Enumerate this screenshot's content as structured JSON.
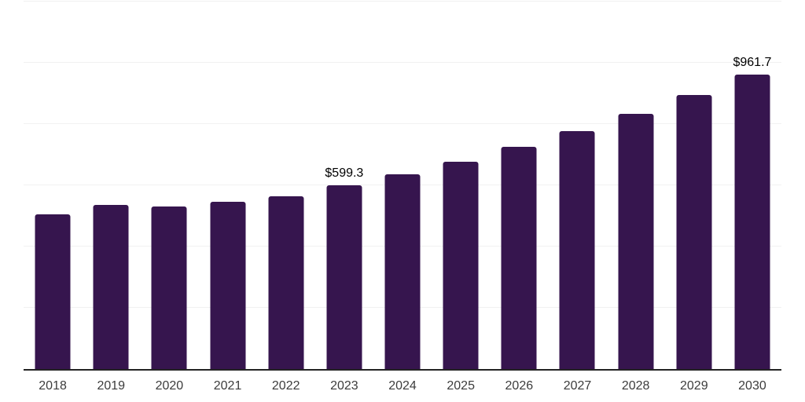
{
  "chart_data": {
    "type": "bar",
    "title": "",
    "xlabel": "",
    "ylabel": "",
    "categories": [
      "2018",
      "2019",
      "2020",
      "2021",
      "2022",
      "2023",
      "2024",
      "2025",
      "2026",
      "2027",
      "2028",
      "2029",
      "2030"
    ],
    "values": [
      504,
      535,
      530,
      546,
      565,
      599.3,
      635,
      678,
      726,
      776,
      834,
      896,
      961.7
    ],
    "data_labels": [
      {
        "category_index": 5,
        "text": "$599.3"
      },
      {
        "category_index": 12,
        "text": "$961.7"
      }
    ],
    "ylim": [
      0,
      1200
    ],
    "gridline_step": 200,
    "grid": true,
    "legend_position": "none",
    "colors": {
      "bar": "#36154E",
      "gridline": "#F1F1F1",
      "axis_line": "#232323",
      "tick_label": "#3C3C3C",
      "data_label": "#000000",
      "background": "#FFFFFF"
    }
  }
}
